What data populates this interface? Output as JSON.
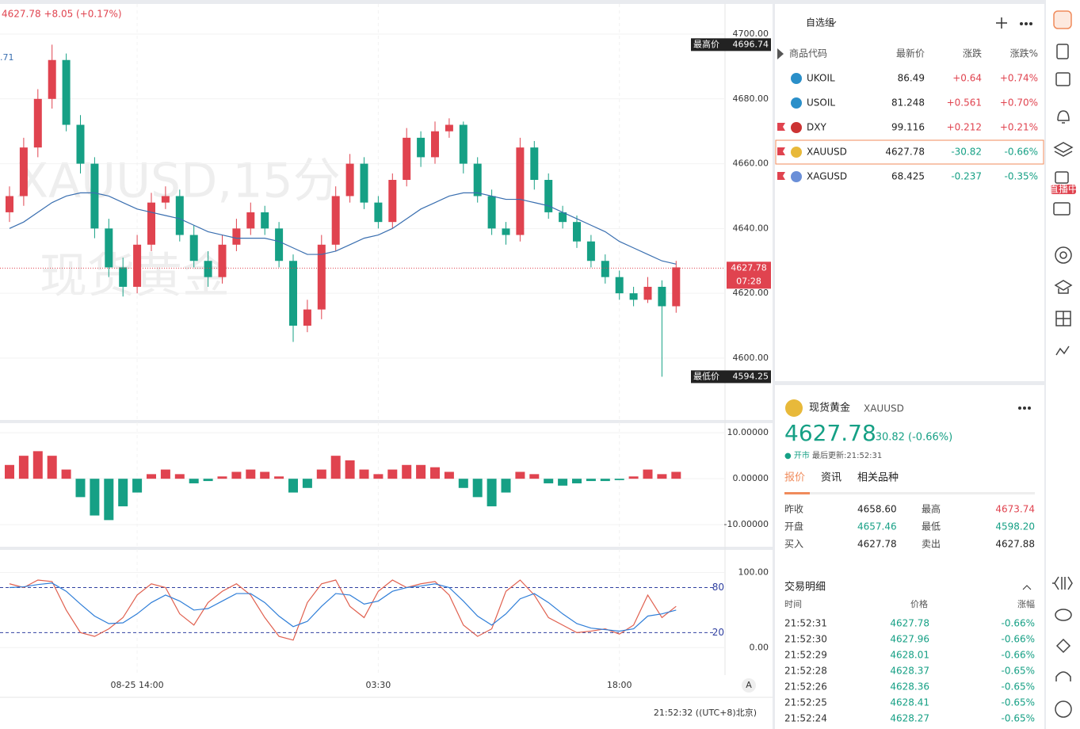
{
  "header": {
    "quote": "4627.78 +8.05 (+0.17%)",
    "side_value": ".71",
    "watermark_1": "XAUUSD,15分",
    "watermark_2": "现货黄金"
  },
  "chart_data": {
    "type": "candlestick",
    "categories": [
      null,
      null,
      null,
      null,
      null,
      null,
      null,
      null,
      null,
      "08-25 14:00",
      null,
      null,
      null,
      null,
      null,
      null,
      null,
      null,
      null,
      null,
      null,
      null,
      null,
      null,
      null,
      null,
      "03:30",
      null,
      null,
      null,
      null,
      null,
      null,
      null,
      null,
      null,
      null,
      null,
      null,
      null,
      null,
      null,
      null,
      "18:00",
      null,
      null,
      null,
      null
    ],
    "open": [
      4645,
      4650,
      4665,
      4680,
      4692,
      4672,
      4660,
      4640,
      4628,
      4622,
      4635,
      4648,
      4650,
      4638,
      4630,
      4625,
      4635,
      4640,
      4645,
      4640,
      4630,
      4610,
      4615,
      4635,
      4650,
      4660,
      4648,
      4642,
      4655,
      4668,
      4662,
      4670,
      4672,
      4660,
      4650,
      4640,
      4638,
      4665,
      4655,
      4645,
      4642,
      4636,
      4630,
      4625,
      4620,
      4618,
      4622,
      4616
    ],
    "high": [
      4653,
      4668,
      4683,
      4696.74,
      4694,
      4675,
      4662,
      4643,
      4631,
      4638,
      4651,
      4653,
      4652,
      4641,
      4633,
      4638,
      4643,
      4648,
      4647,
      4642,
      4632,
      4618,
      4638,
      4653,
      4663,
      4662,
      4650,
      4657,
      4671,
      4670,
      4673,
      4674,
      4673,
      4662,
      4652,
      4642,
      4668,
      4667,
      4657,
      4647,
      4644,
      4638,
      4632,
      4627,
      4622,
      4625,
      4624,
      4630
    ],
    "low": [
      4642,
      4647,
      4662,
      4677,
      4670,
      4657,
      4637,
      4625,
      4619,
      4620,
      4633,
      4646,
      4636,
      4628,
      4622,
      4623,
      4633,
      4638,
      4638,
      4628,
      4605,
      4608,
      4612,
      4633,
      4648,
      4646,
      4640,
      4640,
      4653,
      4659,
      4660,
      4668,
      4657,
      4648,
      4638,
      4635,
      4636,
      4652,
      4643,
      4640,
      4634,
      4628,
      4623,
      4618,
      4616,
      4617,
      4594.25,
      4614
    ],
    "close": [
      4650,
      4665,
      4680,
      4692,
      4672,
      4660,
      4640,
      4628,
      4622,
      4635,
      4648,
      4650,
      4638,
      4630,
      4625,
      4635,
      4640,
      4645,
      4640,
      4630,
      4610,
      4615,
      4635,
      4650,
      4660,
      4648,
      4642,
      4655,
      4668,
      4662,
      4670,
      4672,
      4660,
      4650,
      4640,
      4638,
      4665,
      4655,
      4645,
      4642,
      4636,
      4630,
      4625,
      4620,
      4618,
      4622,
      4616,
      4628
    ],
    "up_color": "#e0434f",
    "down_color": "#16a085",
    "ylim": [
      4580.9,
      4709.3
    ],
    "yticks": [
      {
        "value": 4600,
        "label": "4600.00"
      },
      {
        "value": 4620,
        "label": "4620.00"
      },
      {
        "value": 4640,
        "label": "4640.00"
      },
      {
        "value": 4660,
        "label": "4660.00"
      },
      {
        "value": 4680,
        "label": "4680.00"
      },
      {
        "value": 4700,
        "label": "4700.00"
      }
    ],
    "high_label": {
      "name": "最高价",
      "value": 4696.74
    },
    "low_label": {
      "name": "最低价",
      "value": 4594.25
    },
    "last_price": {
      "value": 4627.78,
      "countdown": "07:28"
    },
    "ma": {
      "color": "#3a6fb0",
      "values": [
        4640,
        4642,
        4645,
        4648,
        4650,
        4651,
        4651,
        4650,
        4648,
        4646,
        4645,
        4644,
        4643,
        4641,
        4639,
        4638,
        4637,
        4637,
        4637,
        4636,
        4634,
        4632,
        4632,
        4633,
        4635,
        4637,
        4638,
        4640,
        4643,
        4646,
        4648,
        4650,
        4651,
        4651,
        4650,
        4649,
        4649,
        4648,
        4647,
        4645,
        4643,
        4641,
        4639,
        4636,
        4634,
        4632,
        4630,
        4629
      ]
    },
    "macd": {
      "values": [
        3,
        5,
        6,
        5,
        2,
        -4,
        -8,
        -9,
        -6,
        -3,
        1,
        2,
        1,
        -1,
        -0.5,
        0.5,
        1.5,
        2,
        1.5,
        0.5,
        -3,
        -2,
        2,
        5,
        4,
        2,
        1,
        2,
        3,
        3,
        2.5,
        1.5,
        -2,
        -4,
        -6,
        -3,
        1.5,
        1,
        -1,
        -1.5,
        -1,
        -0.5,
        -0.5,
        -0.3,
        0.5,
        2,
        1,
        1.5
      ],
      "ylim": [
        -14.8,
        12.1
      ],
      "yticks": [
        {
          "value": 10,
          "label": "10.00000"
        },
        {
          "value": 0,
          "label": "0.00000"
        },
        {
          "value": -10,
          "label": "-10.00000"
        }
      ]
    },
    "kdj": {
      "k": {
        "color": "#e0604f",
        "values": [
          85,
          80,
          90,
          88,
          50,
          20,
          15,
          25,
          40,
          70,
          85,
          80,
          45,
          30,
          60,
          75,
          85,
          70,
          40,
          15,
          10,
          60,
          85,
          90,
          55,
          40,
          75,
          90,
          80,
          85,
          88,
          70,
          30,
          15,
          25,
          75,
          90,
          70,
          40,
          30,
          20,
          22,
          25,
          18,
          30,
          70,
          40,
          55
        ]
      },
      "d": {
        "color": "#2f7ed8",
        "values": [
          80,
          81,
          84,
          86,
          75,
          58,
          42,
          32,
          33,
          45,
          60,
          70,
          62,
          50,
          52,
          62,
          72,
          72,
          60,
          42,
          28,
          35,
          55,
          72,
          70,
          58,
          62,
          75,
          80,
          82,
          85,
          80,
          62,
          42,
          30,
          45,
          65,
          72,
          60,
          45,
          32,
          26,
          24,
          22,
          25,
          42,
          45,
          50
        ]
      },
      "levels": [
        80,
        20
      ],
      "level_color": "#3040a0",
      "ylim": [
        -36.6,
        130.1
      ],
      "yticks": [
        {
          "value": 100,
          "label": "100.00"
        },
        {
          "value": 0,
          "label": "0.00"
        }
      ]
    },
    "time": "21:52:32 ((UTC+8)北京)",
    "scale_button": "A"
  },
  "watchlist": {
    "title": "自选组",
    "columns": [
      "商品代码",
      "最新价",
      "涨跌",
      "涨跌%"
    ],
    "rows": [
      {
        "symbol": "UKOIL",
        "price": "86.49",
        "change": "+0.64",
        "change_pct": "+0.74%"
      },
      {
        "symbol": "USOIL",
        "price": "81.248",
        "change": "+0.561",
        "change_pct": "+0.70%"
      },
      {
        "symbol": "DXY",
        "price": "99.116",
        "change": "+0.212",
        "change_pct": "+0.21%"
      },
      {
        "symbol": "XAUUSD",
        "price": "4627.78",
        "change": "-30.82",
        "change_pct": "-0.66%"
      },
      {
        "symbol": "XAGUSD",
        "price": "68.425",
        "change": "-0.237",
        "change_pct": "-0.35%"
      }
    ]
  },
  "detail": {
    "name": "现货黄金",
    "symbol": "XAUUSD",
    "price": "4627.78",
    "change": "-30.82 (-0.66%)",
    "status": "● 开市",
    "updated": "最后更新:21:52:31",
    "tabs": [
      "报价",
      "资讯",
      "相关品种"
    ],
    "stats": [
      [
        "昨收",
        "4658.60",
        "最高",
        "4673.74"
      ],
      [
        "开盘",
        "4657.46",
        "最低",
        "4598.20"
      ],
      [
        "买入",
        "4627.78",
        "卖出",
        "4627.88"
      ]
    ],
    "trades_title": "交易明细",
    "trade_columns": [
      "时间",
      "价格",
      "涨幅"
    ],
    "trades": [
      [
        "21:52:31",
        "4627.78",
        "-0.66%"
      ],
      [
        "21:52:30",
        "4627.96",
        "-0.66%"
      ],
      [
        "21:52:29",
        "4628.01",
        "-0.66%"
      ],
      [
        "21:52:28",
        "4628.37",
        "-0.65%"
      ],
      [
        "21:52:26",
        "4628.36",
        "-0.65%"
      ],
      [
        "21:52:25",
        "4628.41",
        "-0.65%"
      ],
      [
        "21:52:24",
        "4628.27",
        "-0.65%"
      ]
    ]
  },
  "sidebar": {
    "badge": "直播中"
  }
}
